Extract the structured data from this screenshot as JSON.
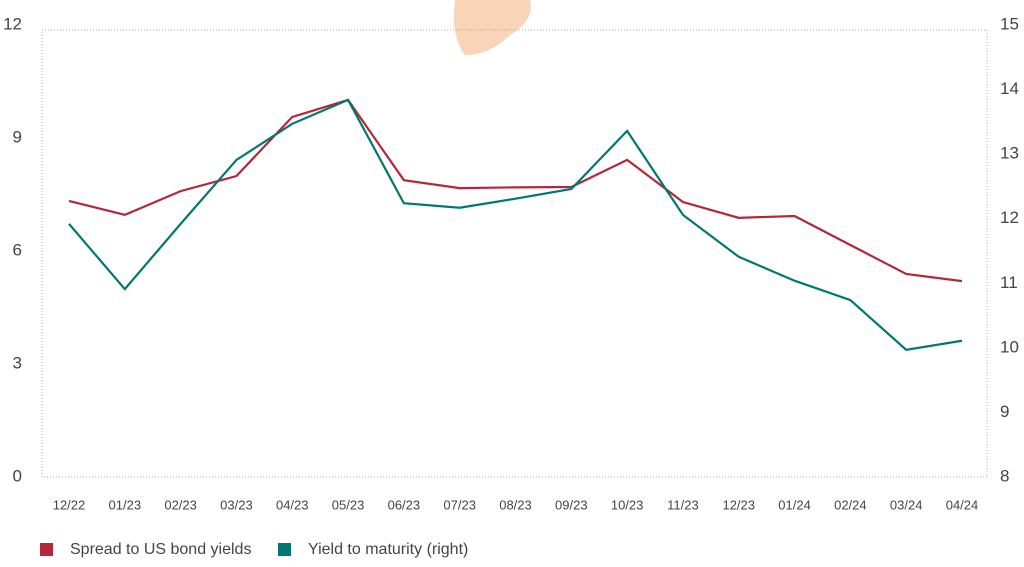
{
  "chart_data": {
    "type": "line",
    "categories": [
      "12/22",
      "01/23",
      "02/23",
      "03/23",
      "04/23",
      "05/23",
      "06/23",
      "07/23",
      "08/23",
      "09/23",
      "10/23",
      "11/23",
      "12/23",
      "01/24",
      "02/24",
      "03/24",
      "04/24"
    ],
    "series": [
      {
        "name": "Spread to US bond yields",
        "color": "#b5263a",
        "values": [
          7.33,
          6.96,
          7.59,
          7.99,
          9.56,
          10.01,
          7.88,
          7.67,
          7.69,
          7.7,
          8.42,
          7.3,
          6.88,
          6.93,
          6.16,
          5.39,
          5.2
        ]
      },
      {
        "name": "Yield to maturity (right)",
        "color": "#007872",
        "axis": "y2",
        "values": [
          11.92,
          10.91,
          11.92,
          12.91,
          13.47,
          13.84,
          12.24,
          12.17,
          12.31,
          12.46,
          13.36,
          12.06,
          11.41,
          11.04,
          10.74,
          9.97,
          10.11
        ]
      }
    ],
    "ylim": [
      0,
      12
    ],
    "yticks": [
      0,
      3,
      6,
      9,
      12
    ],
    "y2lim": [
      8,
      15
    ],
    "y2ticks": [
      8,
      9,
      10,
      11,
      12,
      13,
      14,
      15
    ],
    "legend": "bottom-left"
  }
}
